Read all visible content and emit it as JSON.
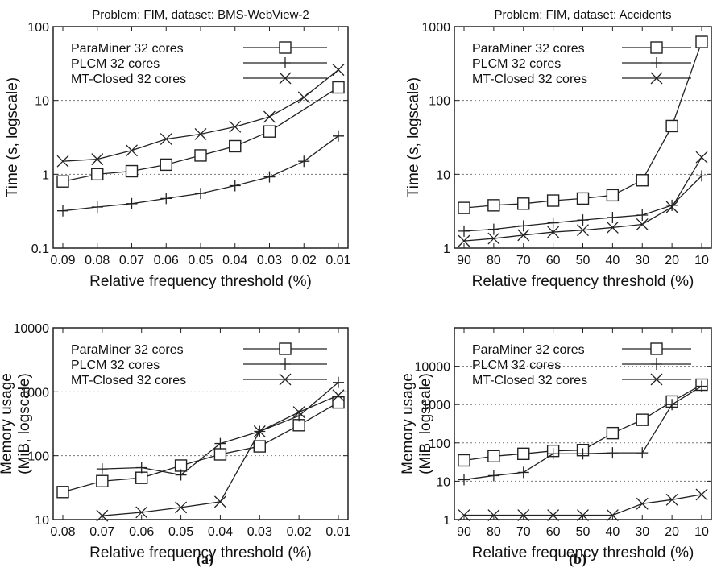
{
  "captions": [
    "(a)",
    "(b)"
  ],
  "chart_data": [
    {
      "id": "a-top",
      "type": "line",
      "title": "Problem: FIM, dataset: BMS-WebView-2",
      "xlabel": "Relative frequency threshold (%)",
      "ylabel": [
        "Time (s, logscale)"
      ],
      "yscale": "log",
      "ylim": [
        0.1,
        100
      ],
      "yticks": [
        0.1,
        1,
        10,
        100
      ],
      "ytick_labels": [
        "0.1",
        "1",
        "10",
        "100"
      ],
      "grid_y": [
        1,
        10
      ],
      "categories": [
        "0.09",
        "0.08",
        "0.07",
        "0.06",
        "0.05",
        "0.04",
        "0.03",
        "0.02",
        "0.01"
      ],
      "series": [
        {
          "name": "ParaMiner 32 cores",
          "marker": "square",
          "x": [
            "0.09",
            "0.08",
            "0.07",
            "0.06",
            "0.05",
            "0.04",
            "0.03",
            "0.02",
            "0.01"
          ],
          "values": [
            0.8,
            1.0,
            1.1,
            1.35,
            1.8,
            2.4,
            3.8,
            null,
            15
          ]
        },
        {
          "name": "PLCM 32 cores",
          "marker": "plus",
          "x": [
            "0.09",
            "0.08",
            "0.07",
            "0.06",
            "0.05",
            "0.04",
            "0.03",
            "0.02",
            "0.01"
          ],
          "values": [
            0.32,
            0.36,
            0.4,
            0.47,
            0.55,
            0.7,
            0.92,
            1.5,
            3.3
          ]
        },
        {
          "name": "MT-Closed 32 cores",
          "marker": "x",
          "x": [
            "0.09",
            "0.08",
            "0.07",
            "0.06",
            "0.05",
            "0.04",
            "0.03",
            "0.02",
            "0.01"
          ],
          "values": [
            1.5,
            1.6,
            2.1,
            3.0,
            3.5,
            4.4,
            6.0,
            11,
            26
          ]
        }
      ],
      "legend": "top-left"
    },
    {
      "id": "b-top",
      "type": "line",
      "title": "Problem: FIM, dataset: Accidents",
      "xlabel": "Relative frequency threshold (%)",
      "ylabel": [
        "Time (s, logscale)"
      ],
      "yscale": "log",
      "ylim": [
        1,
        1000
      ],
      "yticks": [
        1,
        10,
        100,
        1000
      ],
      "ytick_labels": [
        "1",
        "10",
        "100",
        "1000"
      ],
      "grid_y": [
        10,
        100
      ],
      "categories": [
        "90",
        "80",
        "70",
        "60",
        "50",
        "40",
        "30",
        "20",
        "10"
      ],
      "series": [
        {
          "name": "ParaMiner 32 cores",
          "marker": "square",
          "x": [
            "90",
            "80",
            "70",
            "60",
            "50",
            "40",
            "30",
            "20",
            "10"
          ],
          "values": [
            3.5,
            3.8,
            4.0,
            4.4,
            4.7,
            5.2,
            8.3,
            45,
            620
          ]
        },
        {
          "name": "PLCM 32 cores",
          "marker": "plus",
          "x": [
            "90",
            "80",
            "70",
            "60",
            "50",
            "40",
            "30",
            "20",
            "10"
          ],
          "values": [
            1.7,
            1.8,
            2.0,
            2.2,
            2.4,
            2.6,
            2.8,
            3.8,
            9.5
          ]
        },
        {
          "name": "MT-Closed 32 cores",
          "marker": "x",
          "x": [
            "90",
            "80",
            "70",
            "60",
            "50",
            "40",
            "30",
            "20",
            "10"
          ],
          "values": [
            1.25,
            1.35,
            1.5,
            1.65,
            1.75,
            1.9,
            2.1,
            3.6,
            17
          ]
        }
      ],
      "legend": "top-left"
    },
    {
      "id": "a-bottom",
      "type": "line",
      "title": "",
      "xlabel": "Relative frequency threshold (%)",
      "ylabel": [
        "Memory usage",
        "(MiB, logscale)"
      ],
      "yscale": "log",
      "ylim": [
        10,
        10000
      ],
      "yticks": [
        10,
        100,
        1000,
        10000
      ],
      "ytick_labels": [
        "10",
        "100",
        "1000",
        "10000"
      ],
      "grid_y": [
        100,
        1000
      ],
      "categories": [
        "0.08",
        "0.07",
        "0.06",
        "0.05",
        "0.04",
        "0.03",
        "0.02",
        "0.01"
      ],
      "series": [
        {
          "name": "ParaMiner 32 cores",
          "marker": "square",
          "x": [
            "0.08",
            "0.07",
            "0.06",
            "0.05",
            "0.04",
            "0.03",
            "0.02",
            "0.01"
          ],
          "values": [
            27,
            40,
            45,
            70,
            105,
            140,
            300,
            680
          ]
        },
        {
          "name": "PLCM 32 cores",
          "marker": "plus",
          "x": [
            "0.07",
            "0.06",
            "0.05",
            "0.04",
            "0.03",
            "0.02",
            "0.01"
          ],
          "values": [
            62,
            65,
            50,
            155,
            240,
            420,
            1400
          ]
        },
        {
          "name": "MT-Closed 32 cores",
          "marker": "x",
          "x": [
            "0.07",
            "0.06",
            "0.05",
            "0.04",
            "0.03",
            "0.02",
            "0.01"
          ],
          "values": [
            11.5,
            13,
            15.5,
            19,
            240,
            480,
            880
          ]
        }
      ],
      "legend": "top-left"
    },
    {
      "id": "b-bottom",
      "type": "line",
      "title": "",
      "xlabel": "Relative frequency threshold (%)",
      "ylabel": [
        "Memory usage",
        "(MiB, logscale)"
      ],
      "yscale": "log",
      "ylim": [
        1,
        100000
      ],
      "yticks": [
        1,
        10,
        100,
        1000,
        10000
      ],
      "ytick_labels": [
        "1",
        "10",
        "100",
        "1000",
        "10000"
      ],
      "grid_y": [
        10,
        100,
        1000,
        10000
      ],
      "categories": [
        "90",
        "80",
        "70",
        "60",
        "50",
        "40",
        "30",
        "20",
        "10"
      ],
      "series": [
        {
          "name": "ParaMiner 32 cores",
          "marker": "square",
          "x": [
            "90",
            "80",
            "70",
            "60",
            "50",
            "40",
            "30",
            "20",
            "10"
          ],
          "values": [
            35,
            45,
            52,
            62,
            65,
            180,
            400,
            1200,
            3300
          ]
        },
        {
          "name": "PLCM 32 cores",
          "marker": "plus",
          "x": [
            "90",
            "80",
            "70",
            "60",
            "50",
            "40",
            "30",
            "20",
            "10"
          ],
          "values": [
            11,
            14,
            17,
            52,
            52,
            55,
            55,
            1000,
            3000
          ]
        },
        {
          "name": "MT-Closed 32 cores",
          "marker": "x",
          "x": [
            "90",
            "80",
            "70",
            "60",
            "50",
            "40",
            "30",
            "20",
            "10"
          ],
          "values": [
            1.3,
            1.3,
            1.3,
            1.3,
            1.3,
            1.3,
            2.6,
            3.3,
            4.5
          ]
        }
      ],
      "legend": "top-left"
    }
  ]
}
